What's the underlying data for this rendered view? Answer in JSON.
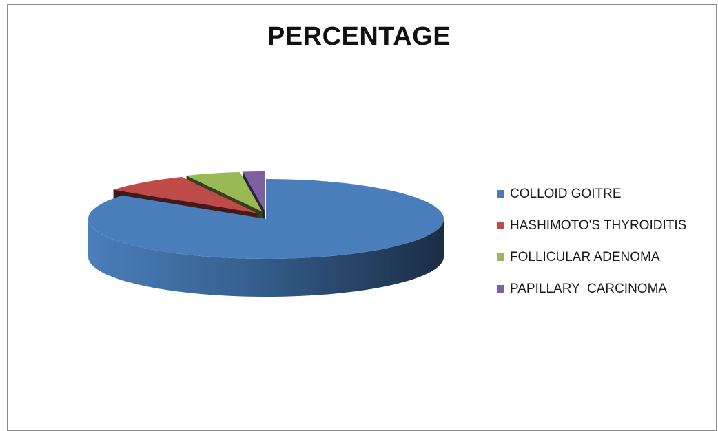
{
  "chart_data": {
    "type": "pie",
    "title": "PERCENTAGE",
    "legend_position": "right",
    "style": "3d-exploded",
    "categories": [
      "COLLOID GOITRE",
      "HASHIMOTO'S THYROIDITIS",
      "FOLLICULAR ADENOMA",
      "PAPILLARY  CARCINOMA"
    ],
    "values": [
      85,
      8,
      5,
      2
    ],
    "colors": [
      "#4a7ebb",
      "#be4b48",
      "#98b954",
      "#7d60a0"
    ]
  }
}
